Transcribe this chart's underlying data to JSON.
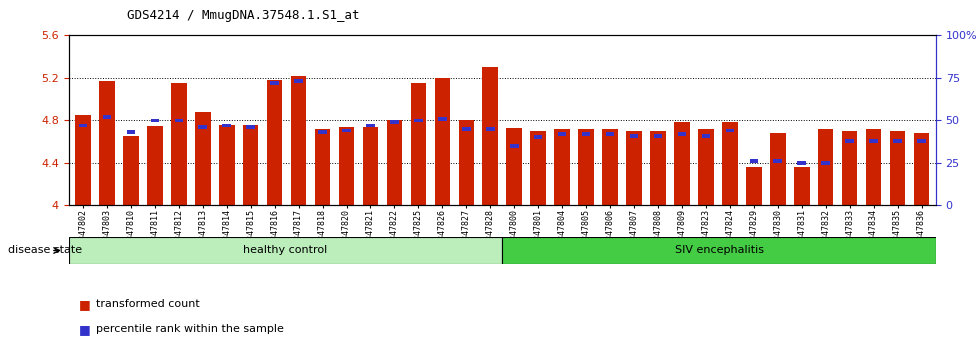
{
  "title": "GDS4214 / MmugDNA.37548.1.S1_at",
  "samples": [
    "GSM347802",
    "GSM347803",
    "GSM347810",
    "GSM347811",
    "GSM347812",
    "GSM347813",
    "GSM347814",
    "GSM347815",
    "GSM347816",
    "GSM347817",
    "GSM347818",
    "GSM347820",
    "GSM347821",
    "GSM347822",
    "GSM347825",
    "GSM347826",
    "GSM347827",
    "GSM347828",
    "GSM347800",
    "GSM347801",
    "GSM347804",
    "GSM347805",
    "GSM347806",
    "GSM347807",
    "GSM347808",
    "GSM347809",
    "GSM347823",
    "GSM347824",
    "GSM347829",
    "GSM347830",
    "GSM347831",
    "GSM347832",
    "GSM347833",
    "GSM347834",
    "GSM347835",
    "GSM347836"
  ],
  "bar_heights": [
    4.85,
    5.17,
    4.65,
    4.75,
    5.15,
    4.88,
    4.76,
    4.76,
    5.18,
    5.22,
    4.72,
    4.74,
    4.74,
    4.8,
    5.15,
    5.2,
    4.8,
    5.3,
    4.73,
    4.7,
    4.72,
    4.72,
    4.72,
    4.7,
    4.7,
    4.78,
    4.72,
    4.78,
    4.36,
    4.68,
    4.36,
    4.72,
    4.7,
    4.72,
    4.7,
    4.68
  ],
  "blue_percentiles": [
    47,
    52,
    43,
    50,
    50,
    46,
    47,
    46,
    72,
    73,
    43,
    44,
    47,
    49,
    50,
    51,
    45,
    45,
    35,
    40,
    42,
    42,
    42,
    41,
    41,
    42,
    41,
    44,
    26,
    26,
    25,
    25,
    38,
    38,
    38,
    38
  ],
  "healthy_count": 18,
  "ymin": 4.0,
  "ymax": 5.6,
  "yticks": [
    4.0,
    4.4,
    4.8,
    5.2,
    5.6
  ],
  "ytick_labels": [
    "4",
    "4.4",
    "4.8",
    "5.2",
    "5.6"
  ],
  "right_yticks": [
    0,
    25,
    50,
    75,
    100
  ],
  "right_ytick_labels": [
    "0",
    "25",
    "50",
    "75",
    "100%"
  ],
  "bar_color": "#cc2200",
  "blue_color": "#3333cc",
  "healthy_color": "#bbeebb",
  "siv_color": "#44cc44",
  "healthy_label": "healthy control",
  "siv_label": "SIV encephalitis",
  "disease_state_label": "disease state",
  "legend_red": "transformed count",
  "legend_blue": "percentile rank within the sample"
}
